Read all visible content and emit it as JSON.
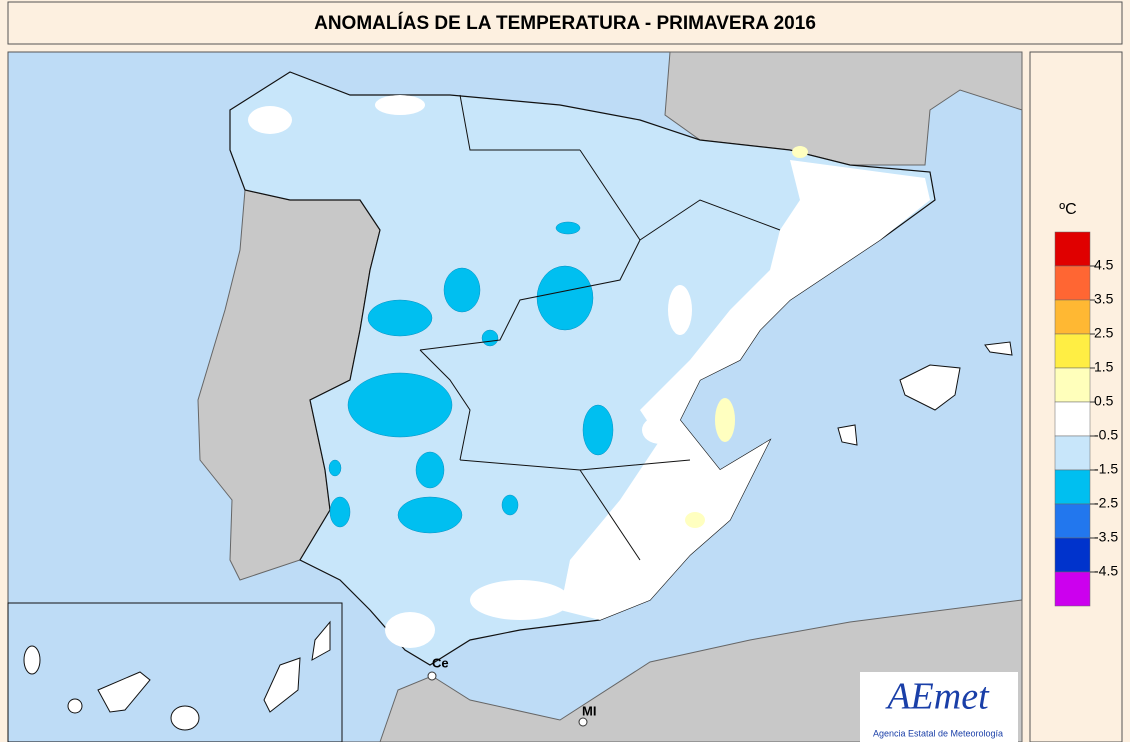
{
  "title": "ANOMALÍAS DE LA TEMPERATURA - PRIMAVERA 2016",
  "legend": {
    "unit": "ºC",
    "colors": [
      "#e00000",
      "#ff6633",
      "#ffb833",
      "#ffee44",
      "#ffffbb",
      "#ffffff",
      "#c8e6fa",
      "#00bff0",
      "#2277ee",
      "#0033cc",
      "#cc00ee"
    ],
    "labels": [
      4.5,
      3.5,
      2.5,
      1.5,
      0.5,
      -0.5,
      -1.5,
      -2.5,
      -3.5,
      -4.5
    ]
  },
  "places": [
    "Ce",
    "MI"
  ],
  "logo": {
    "name": "AEmet",
    "subtitle": "Agencia Estatal de Meteorología"
  }
}
